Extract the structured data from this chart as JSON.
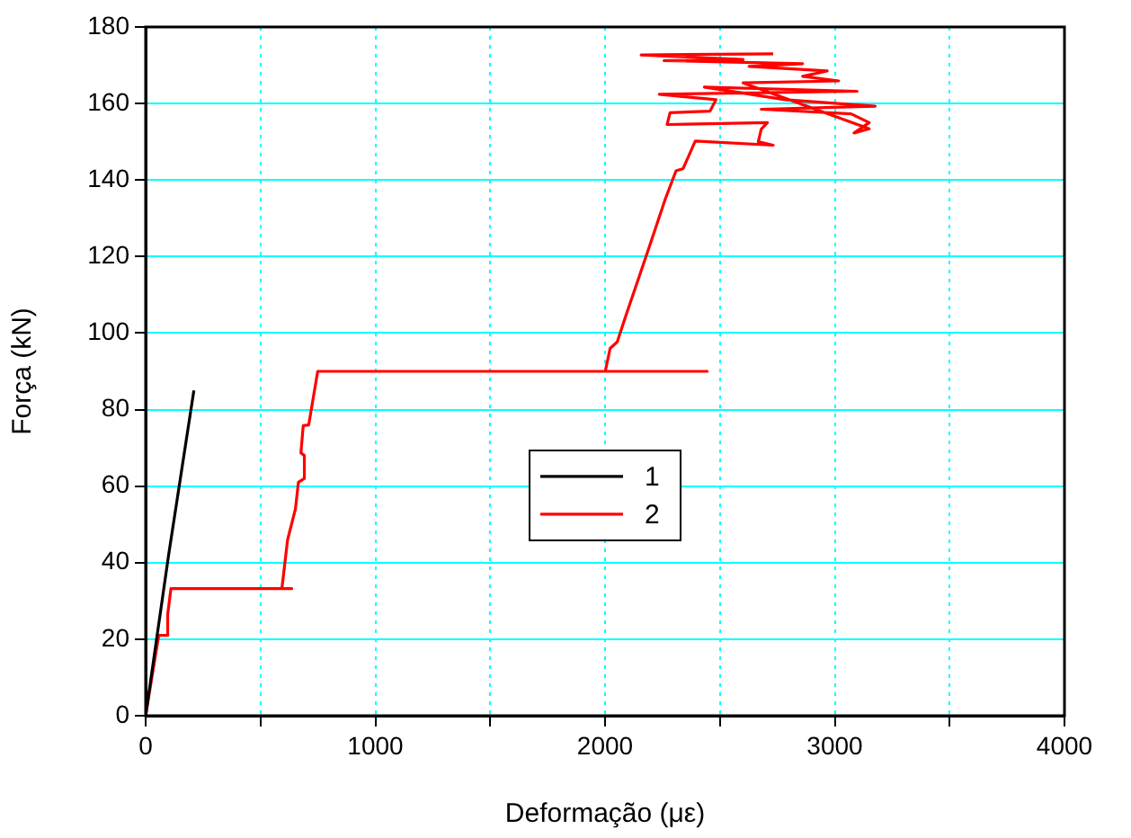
{
  "chart_data": {
    "type": "line",
    "xlabel": "Deformação (με)",
    "ylabel": "Força (kN)",
    "xlim": [
      0,
      4000
    ],
    "xticks": [
      0,
      {
        "value": 500,
        "label": null
      },
      1000,
      {
        "value": 1500,
        "label": null
      },
      2000,
      {
        "value": 2500,
        "label": null
      },
      3000,
      {
        "value": 3500,
        "label": null
      },
      4000
    ],
    "ylim": [
      0,
      180
    ],
    "yticks": [
      0,
      20,
      40,
      60,
      80,
      100,
      120,
      140,
      160,
      180
    ],
    "grid": true,
    "legend": "center",
    "series": [
      {
        "name": "1",
        "color": "#000000",
        "x": [
          0,
          100,
          210
        ],
        "values": [
          0,
          42,
          85
        ]
      },
      {
        "name": "2",
        "color": "#ff0000",
        "x": [
          0,
          57,
          96,
          96,
          110,
          636,
          593,
          618,
          652,
          665,
          691,
          691,
          676,
          686,
          710,
          749,
          2001,
          2445,
          2001,
          2022,
          2053,
          2092,
          2184,
          2262,
          2309,
          2340,
          2387,
          2393,
          2732,
          2667,
          2680,
          2707,
          2270,
          2283,
          2457,
          2483,
          2236,
          3097,
          2432,
          2784,
          3176,
          2680,
          3071,
          3150,
          3084,
          3150,
          2601,
          3017,
          2860,
          2967,
          2627,
          2860,
          2257,
          2601,
          2157,
          2732
        ],
        "values": [
          0,
          21,
          21,
          26.5,
          33.2,
          33.2,
          33.2,
          46,
          54,
          61,
          62,
          68,
          68.7,
          75.8,
          76,
          90,
          90,
          90,
          90,
          96,
          97.7,
          104.8,
          121,
          135,
          142.4,
          143,
          149.4,
          150.2,
          149.1,
          150,
          153.3,
          155,
          154.5,
          157.6,
          158,
          161,
          162.4,
          163.2,
          164.3,
          161,
          159.3,
          158.5,
          157.3,
          155,
          152.3,
          153.4,
          165.4,
          165.9,
          167.1,
          168.5,
          169.7,
          170.4,
          171.2,
          171.5,
          172.7,
          173
        ]
      }
    ]
  }
}
